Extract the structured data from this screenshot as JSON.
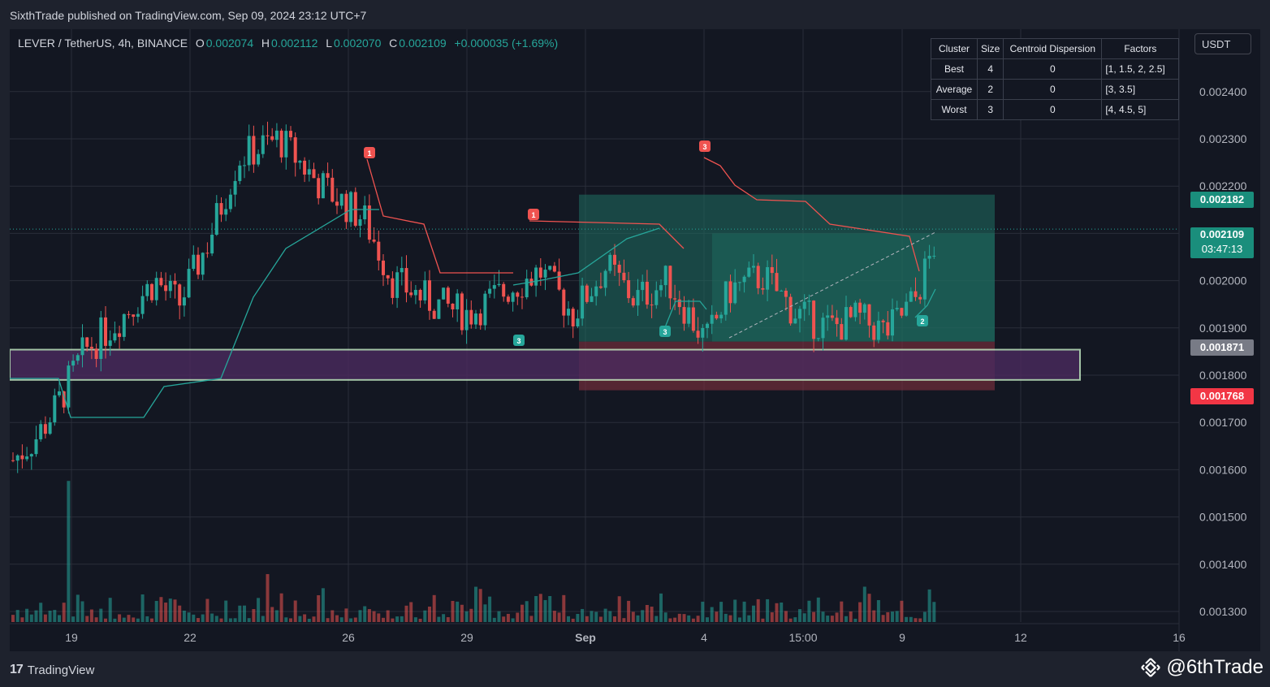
{
  "header": {
    "publisher": "SixthTrade published on TradingView.com, Sep 09, 2024 23:12 UTC+7"
  },
  "legend": {
    "symbol": "LEVER / TetherUS, 4h, BINANCE",
    "o_label": "O",
    "o_value": "0.002074",
    "h_label": "H",
    "h_value": "0.002112",
    "l_label": "L",
    "l_value": "0.002070",
    "c_label": "C",
    "c_value": "0.002109",
    "change": "+0.000035 (+1.69%)"
  },
  "currency": "USDT",
  "cluster_table": {
    "headers": [
      "Cluster",
      "Size",
      "Centroid Dispersion",
      "Factors"
    ],
    "rows": [
      [
        "Best",
        "4",
        "0",
        "[1, 1.5, 2, 2.5]"
      ],
      [
        "Average",
        "2",
        "0",
        "[3, 3.5]"
      ],
      [
        "Worst",
        "3",
        "0",
        "[4, 4.5, 5]"
      ]
    ]
  },
  "price_axis": [
    "0.002400",
    "0.002300",
    "0.002200",
    "0.002100",
    "0.002000",
    "0.001900",
    "0.001800",
    "0.001700",
    "0.001600",
    "0.001500",
    "0.001400",
    "0.001300"
  ],
  "price_tags": {
    "target": "0.002182",
    "last_price": "0.002109",
    "countdown": "03:47:13",
    "entry": "0.001871",
    "stop": "0.001768"
  },
  "time_axis": [
    "19",
    "22",
    "26",
    "29",
    "Sep",
    "4",
    "15:00",
    "9",
    "12",
    "16"
  ],
  "signals": [
    "1",
    "1",
    "3",
    "3",
    "3",
    "2"
  ],
  "colors": {
    "up": "#26a69a",
    "down": "#ef5350",
    "background": "#131722",
    "target_zone": "#1f6f62",
    "stop_zone": "#7a2e3e",
    "support_zone": "#4b2a5e"
  },
  "footer": {
    "brand": "TradingView",
    "handle": "@6thTrade"
  }
}
